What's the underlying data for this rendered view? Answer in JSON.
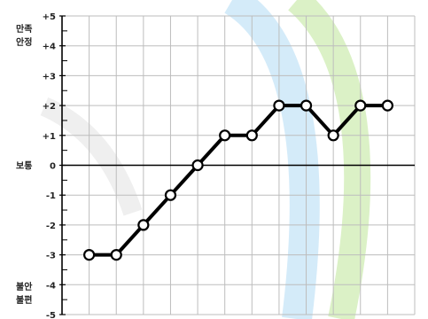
{
  "chart_data": {
    "type": "line",
    "x": [
      1,
      2,
      3,
      4,
      5,
      6,
      7,
      8,
      9,
      10,
      11,
      12
    ],
    "values": [
      -3,
      -3,
      -2,
      -1,
      0,
      1,
      1,
      2,
      2,
      1,
      2,
      2
    ],
    "ylim": [
      -5,
      5
    ],
    "yticks": [
      "+5",
      "+4",
      "+3",
      "+2",
      "+1",
      "0",
      "-1",
      "-2",
      "-3",
      "-4",
      "-5"
    ],
    "ycategories": {
      "top": [
        "만족",
        "안정"
      ],
      "middle": "보통",
      "bottom": [
        "불안",
        "불편"
      ]
    },
    "grid": true,
    "line_color": "#000000",
    "marker_fill": "#ffffff"
  },
  "watermark": {
    "colors": [
      "#cfe9f8",
      "#d7efc0"
    ]
  }
}
